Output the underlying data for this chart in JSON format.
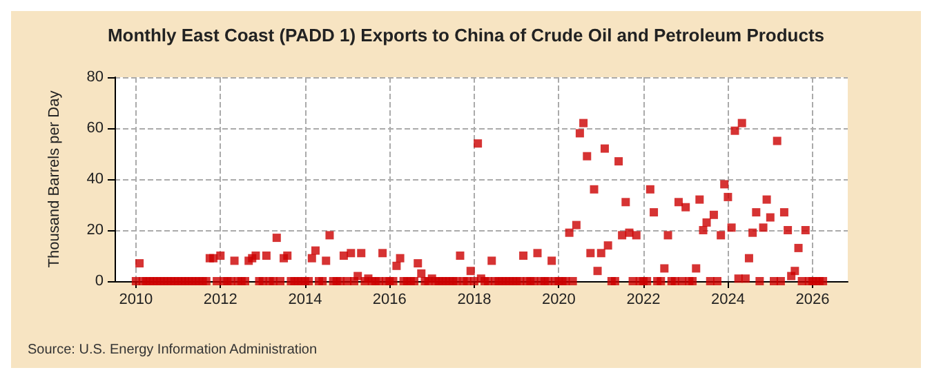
{
  "chart_data": {
    "type": "scatter",
    "title": "Monthly East Coast (PADD 1) Exports to China of Crude Oil and Petroleum Products",
    "ylabel": "Thousand Barrels per Day",
    "annotations": [
      "Source: U.S. Energy Information Administration"
    ],
    "x": [
      "2010-01",
      "2010-02",
      "2010-03",
      "2010-04",
      "2010-05",
      "2010-06",
      "2010-07",
      "2010-08",
      "2010-09",
      "2010-10",
      "2010-11",
      "2010-12",
      "2011-01",
      "2011-02",
      "2011-03",
      "2011-04",
      "2011-05",
      "2011-06",
      "2011-07",
      "2011-08",
      "2011-09",
      "2011-10",
      "2011-11",
      "2011-12",
      "2012-01",
      "2012-02",
      "2012-03",
      "2012-04",
      "2012-05",
      "2012-06",
      "2012-07",
      "2012-08",
      "2012-09",
      "2012-10",
      "2012-11",
      "2012-12",
      "2013-01",
      "2013-02",
      "2013-03",
      "2013-04",
      "2013-05",
      "2013-06",
      "2013-07",
      "2013-08",
      "2013-09",
      "2013-10",
      "2013-11",
      "2013-12",
      "2014-01",
      "2014-02",
      "2014-03",
      "2014-04",
      "2014-05",
      "2014-06",
      "2014-07",
      "2014-08",
      "2014-09",
      "2014-10",
      "2014-11",
      "2014-12",
      "2015-01",
      "2015-02",
      "2015-03",
      "2015-04",
      "2015-05",
      "2015-06",
      "2015-07",
      "2015-08",
      "2015-09",
      "2015-10",
      "2015-11",
      "2015-12",
      "2016-01",
      "2016-02",
      "2016-03",
      "2016-04",
      "2016-05",
      "2016-06",
      "2016-07",
      "2016-08",
      "2016-09",
      "2016-10",
      "2016-11",
      "2016-12",
      "2017-01",
      "2017-02",
      "2017-03",
      "2017-04",
      "2017-05",
      "2017-06",
      "2017-07",
      "2017-08",
      "2017-09",
      "2017-10",
      "2017-11",
      "2017-12",
      "2018-01",
      "2018-02",
      "2018-03",
      "2018-04",
      "2018-05",
      "2018-06",
      "2018-07",
      "2018-08",
      "2018-09",
      "2018-10",
      "2018-11",
      "2018-12",
      "2019-01",
      "2019-02",
      "2019-03",
      "2019-04",
      "2019-05",
      "2019-06",
      "2019-07",
      "2019-08",
      "2019-09",
      "2019-10",
      "2019-11",
      "2019-12",
      "2020-01",
      "2020-02",
      "2020-03",
      "2020-04",
      "2020-05",
      "2020-06",
      "2020-07",
      "2020-08",
      "2020-09",
      "2020-10",
      "2020-11",
      "2020-12",
      "2021-01",
      "2021-02",
      "2021-03",
      "2021-04",
      "2021-05",
      "2021-06",
      "2021-07",
      "2021-08",
      "2021-09",
      "2021-10",
      "2021-11",
      "2021-12",
      "2022-01",
      "2022-02",
      "2022-03",
      "2022-04",
      "2022-05",
      "2022-06",
      "2022-07",
      "2022-08",
      "2022-09",
      "2022-10",
      "2022-11",
      "2022-12",
      "2023-01",
      "2023-02",
      "2023-03",
      "2023-04",
      "2023-05",
      "2023-06",
      "2023-07",
      "2023-08",
      "2023-09",
      "2023-10",
      "2023-11",
      "2023-12",
      "2024-01",
      "2024-02",
      "2024-03",
      "2024-04",
      "2024-05",
      "2024-06",
      "2024-07",
      "2024-08",
      "2024-09",
      "2024-10",
      "2024-11",
      "2024-12",
      "2025-01",
      "2025-02",
      "2025-03",
      "2025-04",
      "2025-05",
      "2025-06",
      "2025-07",
      "2025-08",
      "2025-09",
      "2025-10",
      "2025-11",
      "2025-12",
      "2026-01",
      "2026-02",
      "2026-03",
      "2026-04"
    ],
    "series": [
      {
        "color": "#cc0000",
        "values": [
          0,
          7,
          0,
          0,
          0,
          0,
          0,
          0,
          0,
          0,
          0,
          0,
          0,
          0,
          0,
          0,
          0,
          0,
          0,
          0,
          0,
          9,
          9,
          0,
          10,
          0,
          0,
          0,
          8,
          0,
          0,
          0,
          8,
          9,
          10,
          0,
          0,
          10,
          0,
          0,
          17,
          0,
          9,
          10,
          0,
          0,
          0,
          0,
          0,
          0,
          9,
          12,
          0,
          0,
          8,
          18,
          0,
          0,
          0,
          10,
          0,
          11,
          0,
          2,
          11,
          0,
          1,
          0,
          0,
          0,
          11,
          0,
          0,
          0,
          6,
          9,
          0,
          0,
          0,
          0,
          7,
          3,
          0,
          0,
          1,
          0,
          0,
          0,
          0,
          0,
          0,
          0,
          10,
          0,
          0,
          4,
          0,
          54,
          1,
          0,
          0,
          8,
          0,
          0,
          0,
          0,
          0,
          0,
          0,
          0,
          10,
          0,
          0,
          0,
          11,
          0,
          0,
          0,
          8,
          0,
          0,
          0,
          0,
          19,
          0,
          22,
          58,
          62,
          49,
          11,
          36,
          4,
          11,
          52,
          14,
          0,
          0,
          47,
          18,
          31,
          19,
          0,
          18,
          0,
          0,
          0,
          36,
          27,
          0,
          0,
          5,
          18,
          0,
          0,
          31,
          0,
          29,
          0,
          0,
          5,
          32,
          20,
          23,
          0,
          26,
          0,
          18,
          38,
          33,
          21,
          59,
          1,
          62,
          1,
          9,
          19,
          27,
          0,
          21,
          32,
          25,
          0,
          55,
          0,
          27,
          20,
          2,
          4,
          13,
          0,
          20,
          0,
          0,
          0,
          0,
          0
        ]
      }
    ],
    "xlim": [
      "2009-07",
      "2026-11"
    ],
    "xticks": [
      "2010",
      "2012",
      "2014",
      "2016",
      "2018",
      "2020",
      "2022",
      "2024",
      "2026"
    ],
    "ylim": [
      0,
      80
    ],
    "yticks": [
      0,
      20,
      40,
      60,
      80
    ],
    "grid": true,
    "marker": "square"
  }
}
